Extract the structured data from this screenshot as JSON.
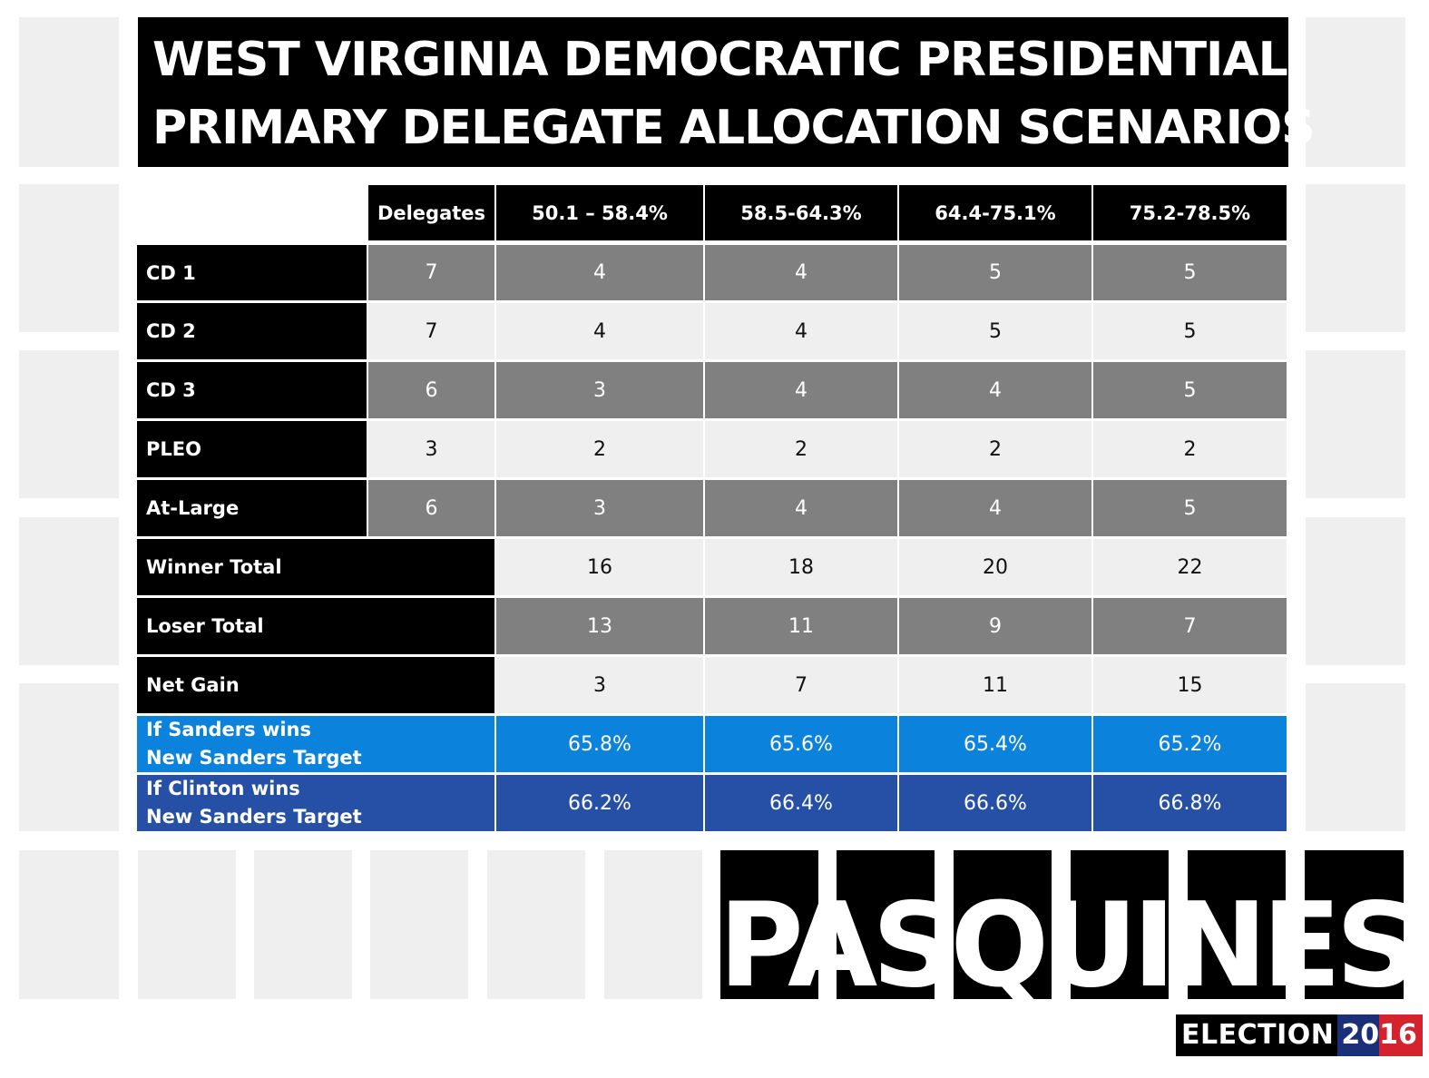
{
  "chart_data": {
    "type": "table",
    "title": [
      "WEST VIRGINIA DEMOCRATIC PRESIDENTIAL",
      "PRIMARY DELEGATE ALLOCATION SCENARIOS"
    ],
    "columns": [
      "Delegates",
      "50.1 – 58.4%",
      "58.5-64.3%",
      "64.4-75.1%",
      "75.2-78.5%"
    ],
    "rows": [
      {
        "label": "CD 1",
        "delegates": "7",
        "values": [
          "4",
          "4",
          "5",
          "5"
        ]
      },
      {
        "label": "CD 2",
        "delegates": "7",
        "values": [
          "4",
          "4",
          "5",
          "5"
        ]
      },
      {
        "label": "CD 3",
        "delegates": "6",
        "values": [
          "3",
          "4",
          "4",
          "5"
        ]
      },
      {
        "label": "PLEO",
        "delegates": "3",
        "values": [
          "2",
          "2",
          "2",
          "2"
        ]
      },
      {
        "label": "At-Large",
        "delegates": "6",
        "values": [
          "3",
          "4",
          "4",
          "5"
        ]
      },
      {
        "label": "Winner Total",
        "values": [
          "16",
          "18",
          "20",
          "22"
        ]
      },
      {
        "label": "Loser Total",
        "values": [
          "13",
          "11",
          "9",
          "7"
        ]
      },
      {
        "label": "Net Gain",
        "values": [
          "3",
          "7",
          "11",
          "15"
        ]
      },
      {
        "label": [
          "If Sanders wins",
          "New Sanders Target"
        ],
        "values": [
          "65.8%",
          "65.6%",
          "65.4%",
          "65.2%"
        ]
      },
      {
        "label": [
          "If Clinton wins",
          "New Sanders Target"
        ],
        "values": [
          "66.2%",
          "66.4%",
          "66.6%",
          "66.8%"
        ]
      }
    ]
  },
  "branding": {
    "logo": "PASQUINES",
    "election_word": "ELECTION",
    "year_part1": "20",
    "year_part2": "16"
  },
  "colors": {
    "header_bg": "#000000",
    "row_dark": "#808080",
    "row_light": "#efefef",
    "sanders_blue": "#0b82dc",
    "clinton_blue": "#2550a6"
  }
}
